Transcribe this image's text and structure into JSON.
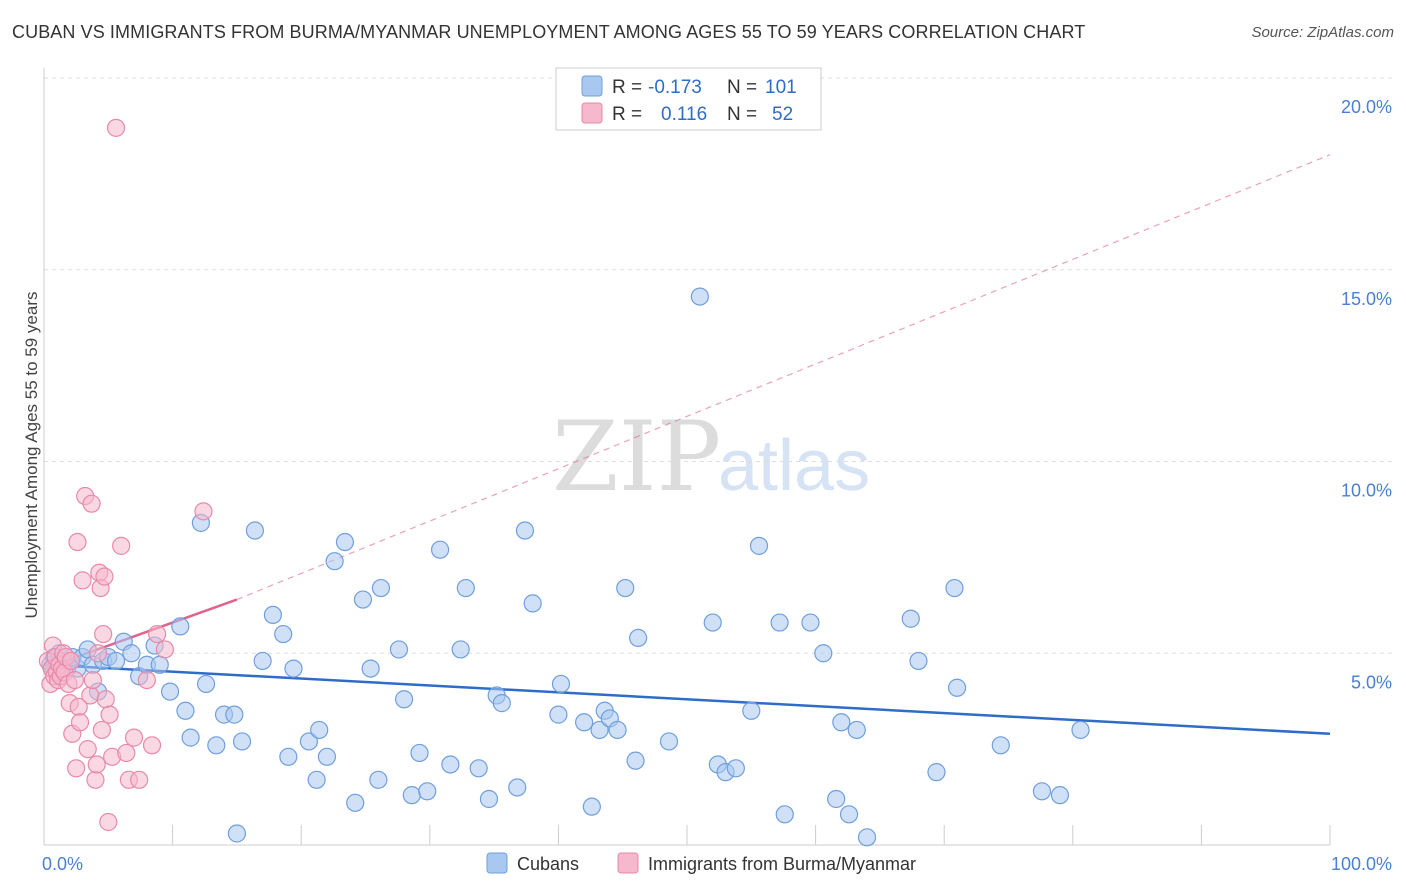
{
  "title": "CUBAN VS IMMIGRANTS FROM BURMA/MYANMAR UNEMPLOYMENT AMONG AGES 55 TO 59 YEARS CORRELATION CHART",
  "source": "Source: ZipAtlas.com",
  "watermark": {
    "zip": "ZIP",
    "atlas": "atlas"
  },
  "colors": {
    "cubans_fill": "#a9c8f0",
    "cubans_stroke": "#6f9fdc",
    "cubans_line": "#2f6cc8",
    "burma_fill": "#f5b8cc",
    "burma_stroke": "#e889aa",
    "burma_line": "#e0628f",
    "tick": "#4a7fd4",
    "grid": "#dddddd"
  },
  "legend": {
    "rows": [
      {
        "r_label": "R =",
        "r_value": "-0.173",
        "n_label": "N =",
        "n_value": "101"
      },
      {
        "r_label": "R =",
        "r_value": "0.116",
        "n_label": "N =",
        "n_value": "52"
      }
    ]
  },
  "chart_data": {
    "type": "scatter",
    "title": "CUBAN VS IMMIGRANTS FROM BURMA/MYANMAR UNEMPLOYMENT AMONG AGES 55 TO 59 YEARS CORRELATION CHART",
    "xlabel": "",
    "ylabel": "Unemployment Among Ages 55 to 59 years",
    "xlim": [
      0,
      100
    ],
    "ylim": [
      0,
      20
    ],
    "x_ticks": [
      "0.0%",
      "100.0%"
    ],
    "y_ticks": [
      {
        "value": 5,
        "label": "5.0%"
      },
      {
        "value": 10,
        "label": "10.0%"
      },
      {
        "value": 15,
        "label": "15.0%"
      },
      {
        "value": 20,
        "label": "20.0%"
      }
    ],
    "grid": true,
    "legend_position": "top-center",
    "series": [
      {
        "name": "Cubans",
        "r": -0.173,
        "n": 101,
        "trend": {
          "x": [
            0,
            100
          ],
          "y": [
            4.7,
            2.9
          ],
          "style": "solid"
        },
        "points": [
          [
            0.5,
            4.7
          ],
          [
            0.8,
            4.9
          ],
          [
            1.2,
            5.0
          ],
          [
            1.5,
            4.8
          ],
          [
            1.8,
            4.6
          ],
          [
            2.2,
            4.9
          ],
          [
            2.6,
            4.6
          ],
          [
            3.0,
            4.9
          ],
          [
            3.4,
            5.1
          ],
          [
            3.8,
            4.7
          ],
          [
            4.2,
            4.0
          ],
          [
            4.6,
            4.8
          ],
          [
            5.0,
            4.9
          ],
          [
            5.6,
            4.8
          ],
          [
            6.2,
            5.3
          ],
          [
            6.8,
            5.0
          ],
          [
            7.4,
            4.4
          ],
          [
            8.0,
            4.7
          ],
          [
            8.6,
            5.2
          ],
          [
            9.0,
            4.7
          ],
          [
            9.8,
            4.0
          ],
          [
            10.6,
            5.7
          ],
          [
            11.4,
            2.8
          ],
          [
            12.2,
            8.4
          ],
          [
            12.6,
            4.2
          ],
          [
            13.4,
            2.6
          ],
          [
            14.0,
            3.4
          ],
          [
            14.8,
            3.4
          ],
          [
            15.4,
            2.7
          ],
          [
            16.4,
            8.2
          ],
          [
            17.0,
            4.8
          ],
          [
            17.8,
            6.0
          ],
          [
            18.6,
            5.5
          ],
          [
            19.4,
            4.6
          ],
          [
            20.6,
            2.7
          ],
          [
            21.2,
            1.7
          ],
          [
            22.0,
            2.3
          ],
          [
            22.6,
            7.4
          ],
          [
            23.4,
            7.9
          ],
          [
            24.2,
            1.1
          ],
          [
            24.8,
            6.4
          ],
          [
            25.4,
            4.6
          ],
          [
            26.2,
            6.7
          ],
          [
            27.6,
            5.1
          ],
          [
            28.0,
            3.8
          ],
          [
            28.6,
            1.3
          ],
          [
            29.2,
            2.4
          ],
          [
            29.8,
            1.4
          ],
          [
            30.8,
            7.7
          ],
          [
            31.6,
            2.1
          ],
          [
            32.4,
            5.1
          ],
          [
            32.8,
            6.7
          ],
          [
            33.8,
            2.0
          ],
          [
            34.6,
            1.2
          ],
          [
            35.2,
            3.9
          ],
          [
            35.6,
            3.7
          ],
          [
            36.8,
            1.5
          ],
          [
            37.4,
            8.2
          ],
          [
            38.0,
            6.3
          ],
          [
            40.2,
            4.2
          ],
          [
            40.0,
            3.4
          ],
          [
            42.0,
            3.2
          ],
          [
            42.6,
            1.0
          ],
          [
            43.2,
            3.0
          ],
          [
            43.6,
            3.5
          ],
          [
            44.0,
            3.3
          ],
          [
            44.6,
            3.0
          ],
          [
            45.2,
            6.7
          ],
          [
            46.0,
            2.2
          ],
          [
            46.2,
            5.4
          ],
          [
            48.6,
            2.7
          ],
          [
            51.0,
            14.3
          ],
          [
            52.0,
            5.8
          ],
          [
            52.4,
            2.1
          ],
          [
            53.0,
            1.9
          ],
          [
            53.8,
            2.0
          ],
          [
            55.0,
            3.5
          ],
          [
            55.6,
            7.8
          ],
          [
            57.6,
            0.8
          ],
          [
            57.2,
            5.8
          ],
          [
            59.6,
            5.8
          ],
          [
            60.6,
            5.0
          ],
          [
            61.6,
            1.2
          ],
          [
            62.0,
            3.2
          ],
          [
            62.6,
            0.8
          ],
          [
            63.2,
            3.0
          ],
          [
            64.0,
            0.2
          ],
          [
            67.4,
            5.9
          ],
          [
            68.0,
            4.8
          ],
          [
            69.4,
            1.9
          ],
          [
            70.8,
            6.7
          ],
          [
            71.0,
            4.1
          ],
          [
            74.4,
            2.6
          ],
          [
            77.6,
            1.4
          ],
          [
            79.0,
            1.3
          ],
          [
            80.6,
            3.0
          ],
          [
            15.0,
            0.3
          ],
          [
            19.0,
            2.3
          ],
          [
            26.0,
            1.7
          ],
          [
            11.0,
            3.5
          ],
          [
            21.4,
            3.0
          ]
        ]
      },
      {
        "name": "Immigrants from Burma/Myanmar",
        "r": 0.116,
        "n": 52,
        "trend": {
          "x": [
            0,
            15
          ],
          "y": [
            4.6,
            6.4
          ],
          "style": "solid",
          "extended": {
            "x": [
              15,
              100
            ],
            "y": [
              6.4,
              18.0
            ],
            "style": "dashed"
          }
        },
        "points": [
          [
            0.3,
            4.8
          ],
          [
            0.5,
            4.2
          ],
          [
            0.6,
            4.6
          ],
          [
            0.7,
            5.2
          ],
          [
            0.8,
            4.4
          ],
          [
            0.9,
            4.9
          ],
          [
            1.0,
            4.5
          ],
          [
            1.1,
            4.3
          ],
          [
            1.2,
            4.7
          ],
          [
            1.3,
            4.4
          ],
          [
            1.4,
            4.6
          ],
          [
            1.5,
            5.0
          ],
          [
            1.6,
            4.5
          ],
          [
            1.7,
            4.9
          ],
          [
            1.9,
            4.2
          ],
          [
            2.0,
            3.7
          ],
          [
            2.1,
            4.8
          ],
          [
            2.2,
            2.9
          ],
          [
            2.4,
            4.3
          ],
          [
            2.5,
            2.0
          ],
          [
            2.6,
            7.9
          ],
          [
            2.7,
            3.6
          ],
          [
            2.8,
            3.2
          ],
          [
            3.0,
            6.9
          ],
          [
            3.2,
            9.1
          ],
          [
            3.4,
            2.5
          ],
          [
            3.6,
            3.9
          ],
          [
            3.7,
            8.9
          ],
          [
            3.8,
            4.3
          ],
          [
            4.0,
            1.7
          ],
          [
            4.1,
            2.1
          ],
          [
            4.2,
            5.0
          ],
          [
            4.3,
            7.1
          ],
          [
            4.4,
            6.7
          ],
          [
            4.5,
            3.0
          ],
          [
            4.6,
            5.5
          ],
          [
            4.7,
            7.0
          ],
          [
            4.8,
            3.8
          ],
          [
            5.0,
            0.6
          ],
          [
            5.1,
            3.4
          ],
          [
            5.3,
            2.3
          ],
          [
            5.6,
            18.7
          ],
          [
            6.0,
            7.8
          ],
          [
            6.4,
            2.4
          ],
          [
            6.6,
            1.7
          ],
          [
            7.0,
            2.8
          ],
          [
            7.4,
            1.7
          ],
          [
            8.0,
            4.3
          ],
          [
            8.4,
            2.6
          ],
          [
            8.8,
            5.5
          ],
          [
            9.4,
            5.1
          ],
          [
            12.4,
            8.7
          ]
        ]
      }
    ]
  },
  "bottom_legend": [
    {
      "label": "Cubans"
    },
    {
      "label": "Immigrants from Burma/Myanmar"
    }
  ]
}
